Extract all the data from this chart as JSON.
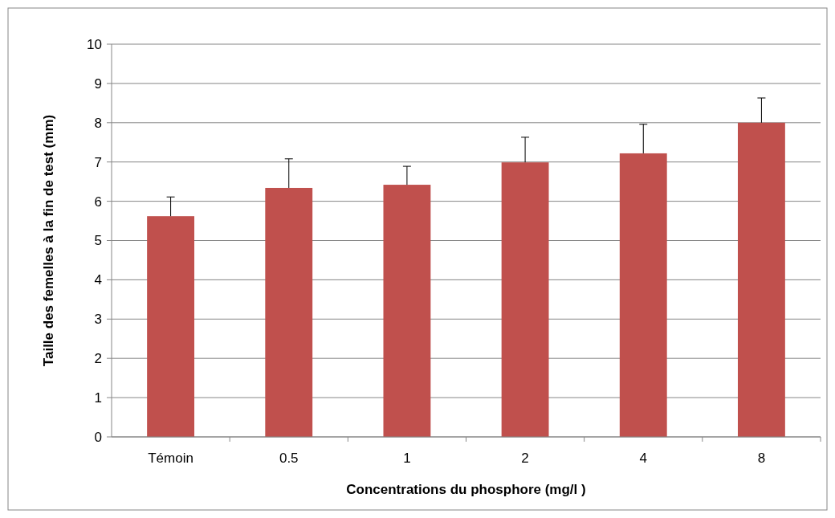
{
  "chart_data": {
    "type": "bar",
    "xlabel": "Concentrations  du phosphore (mg/l )",
    "ylabel": "Taille des femelles à la fin de test (mm)",
    "categories": [
      "Témoin",
      "0.5",
      "1",
      "2",
      "4",
      "8"
    ],
    "values": [
      5.62,
      6.34,
      6.42,
      6.99,
      7.22,
      8.0
    ],
    "errors": [
      [
        5.62,
        6.11
      ],
      [
        6.34,
        7.08
      ],
      [
        6.42,
        6.89
      ],
      [
        6.99,
        7.63
      ],
      [
        7.22,
        7.96
      ],
      [
        8.0,
        8.63
      ]
    ],
    "color": "#c0504d",
    "ylim": [
      0,
      10
    ],
    "yticks": [
      0,
      1,
      2,
      3,
      4,
      5,
      6,
      7,
      8,
      9,
      10
    ],
    "grid": "y"
  }
}
